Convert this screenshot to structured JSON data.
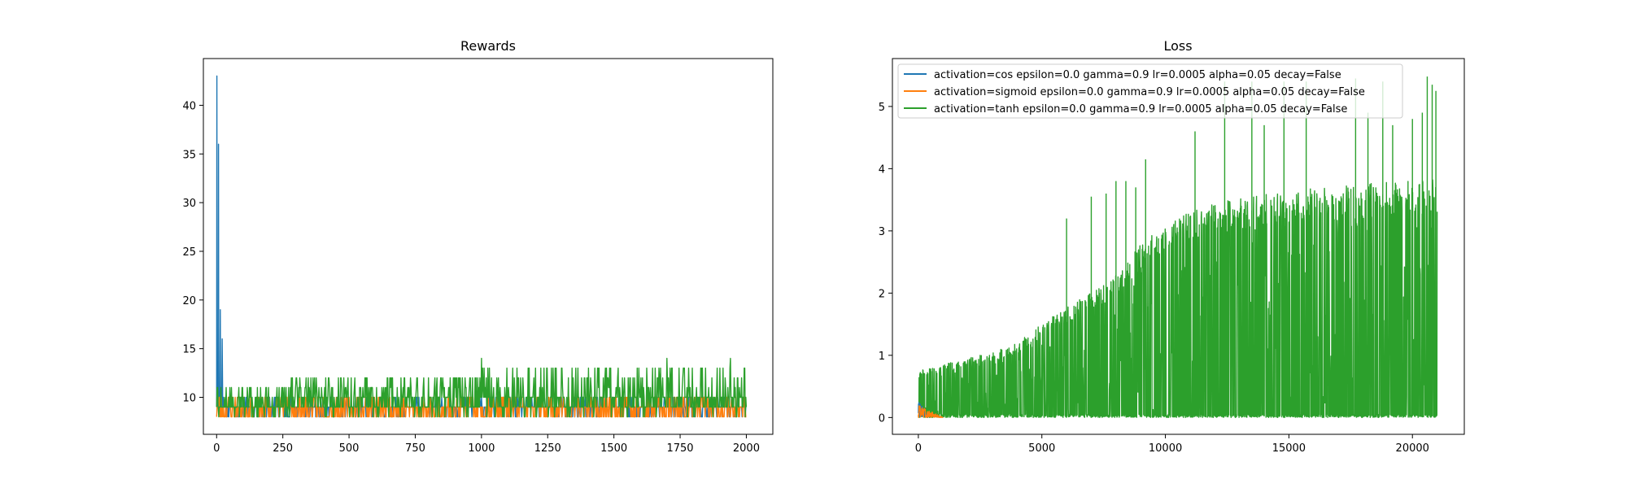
{
  "chart_data": [
    {
      "type": "line",
      "title": "Rewards",
      "xlabel": "",
      "ylabel": "",
      "xlim": [
        -50,
        2100
      ],
      "ylim": [
        6.2,
        44.8
      ],
      "x_ticks": [
        0,
        250,
        500,
        750,
        1000,
        1250,
        1500,
        1750,
        2000
      ],
      "y_ticks": [
        10,
        15,
        20,
        25,
        30,
        35,
        40
      ],
      "x_max": 2000,
      "grid": false,
      "series": [
        {
          "color": "#1f77b4",
          "early_points": [
            [
              0,
              9
            ],
            [
              1,
              43
            ],
            [
              2,
              9
            ],
            [
              3,
              10
            ],
            [
              4,
              9
            ],
            [
              6,
              9
            ],
            [
              7,
              36
            ],
            [
              8,
              9
            ],
            [
              10,
              10
            ],
            [
              12,
              9
            ],
            [
              14,
              19
            ],
            [
              15,
              9
            ],
            [
              17,
              11
            ],
            [
              19,
              9
            ],
            [
              21,
              16
            ],
            [
              23,
              9
            ],
            [
              25,
              10
            ],
            [
              28,
              9
            ]
          ],
          "base_range": [
            8,
            10
          ]
        },
        {
          "color": "#ff7f0e",
          "base_range": [
            8,
            10
          ]
        },
        {
          "color": "#2ca02c",
          "segments": [
            {
              "x_end": 280,
              "range": [
                8,
                11
              ]
            },
            {
              "x_end": 1000,
              "range": [
                8,
                12
              ]
            },
            {
              "x_end": 2000,
              "range": [
                8,
                13
              ]
            }
          ],
          "peaks": [
            [
              1000,
              14
            ],
            [
              1005,
              14
            ],
            [
              1700,
              14
            ],
            [
              1940,
              14
            ]
          ]
        }
      ]
    },
    {
      "type": "line",
      "title": "Loss",
      "xlabel": "",
      "ylabel": "",
      "xlim": [
        -1050,
        22100
      ],
      "ylim": [
        -0.27,
        5.77
      ],
      "x_ticks": [
        0,
        5000,
        10000,
        15000,
        20000
      ],
      "y_ticks": [
        0,
        1,
        2,
        3,
        4,
        5
      ],
      "x_max": 21000,
      "legend_position": "top-left",
      "grid": false,
      "series": [
        {
          "name": "activation=cos epsilon=0.0 gamma=0.9 lr=0.0005 alpha=0.05 decay=False",
          "color": "#1f77b4",
          "x_end": 400,
          "peak": 0.3
        },
        {
          "name": "activation=sigmoid epsilon=0.0 gamma=0.9 lr=0.0005 alpha=0.05 decay=False",
          "color": "#ff7f0e",
          "x_end": 1000,
          "peak": 0.2
        },
        {
          "name": "activation=tanh epsilon=0.0 gamma=0.9 lr=0.0005 alpha=0.05 decay=False",
          "color": "#2ca02c",
          "envelope": [
            [
              0,
              0.75
            ],
            [
              1000,
              0.85
            ],
            [
              2000,
              0.95
            ],
            [
              3000,
              1.05
            ],
            [
              4000,
              1.2
            ],
            [
              5000,
              1.5
            ],
            [
              6000,
              1.8
            ],
            [
              7000,
              2.0
            ],
            [
              8000,
              2.3
            ],
            [
              9000,
              2.8
            ],
            [
              9500,
              2.95
            ],
            [
              10000,
              3.15
            ],
            [
              11000,
              3.3
            ],
            [
              12000,
              3.5
            ],
            [
              13000,
              3.55
            ],
            [
              15000,
              3.65
            ],
            [
              17000,
              3.72
            ],
            [
              19000,
              3.8
            ],
            [
              21000,
              3.85
            ]
          ],
          "spikes": [
            [
              6000,
              3.2
            ],
            [
              7000,
              3.55
            ],
            [
              7600,
              3.6
            ],
            [
              8000,
              3.8
            ],
            [
              8400,
              3.8
            ],
            [
              8800,
              3.7
            ],
            [
              9200,
              4.15
            ],
            [
              11200,
              4.6
            ],
            [
              12400,
              5.4
            ],
            [
              13500,
              5.4
            ],
            [
              14000,
              4.7
            ],
            [
              14800,
              5.4
            ],
            [
              15700,
              5.4
            ],
            [
              17700,
              5.45
            ],
            [
              18200,
              4.9
            ],
            [
              18800,
              5.4
            ],
            [
              19200,
              4.7
            ],
            [
              20000,
              4.8
            ],
            [
              20400,
              4.9
            ],
            [
              20600,
              5.48
            ],
            [
              20800,
              5.35
            ],
            [
              20950,
              5.25
            ]
          ]
        }
      ]
    }
  ]
}
